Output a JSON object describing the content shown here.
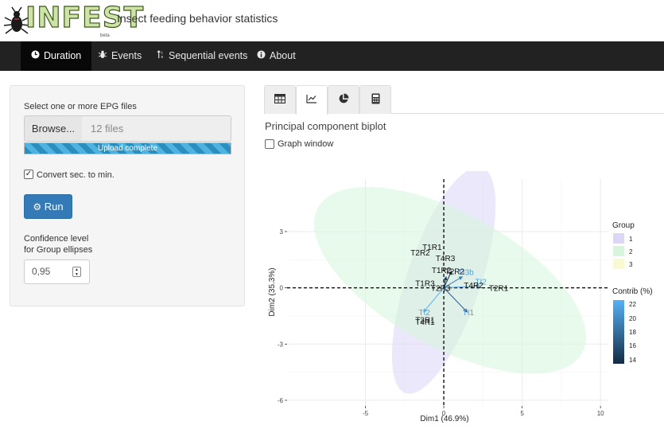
{
  "header": {
    "logo_text": "INFEST",
    "logo_beta": "beta",
    "title": "Insect feeding behavior statistics"
  },
  "navbar": {
    "items": [
      {
        "label": "Duration",
        "icon": "clock-icon",
        "active": true
      },
      {
        "label": "Events",
        "icon": "bug-icon",
        "active": false
      },
      {
        "label": "Sequential events",
        "icon": "sort-icon",
        "active": false
      },
      {
        "label": "About",
        "icon": "info-icon",
        "active": false
      }
    ]
  },
  "sidebar": {
    "file_label": "Select one or more EPG files",
    "browse_label": "Browse...",
    "file_value": "12 files",
    "upload_status": "Upload complete",
    "convert_label": "Convert sec. to min.",
    "convert_checked": true,
    "run_label": "Run",
    "confidence_label_1": "Confidence level",
    "confidence_label_2": "for Group ellipses",
    "confidence_value": "0,95"
  },
  "tabs": [
    {
      "icon": "table-icon",
      "active": false
    },
    {
      "icon": "line-chart-icon",
      "active": true
    },
    {
      "icon": "pie-chart-icon",
      "active": false
    },
    {
      "icon": "calculator-icon",
      "active": false
    }
  ],
  "main": {
    "plot_title": "Principal component biplot",
    "graph_window_label": "Graph window",
    "graph_window_checked": false
  },
  "colors": {
    "group_1": "#dcd6f7",
    "group_2": "#d6f5da",
    "group_3": "#fafad2",
    "contrib_low": "#132b43",
    "contrib_high": "#56b1f7"
  },
  "chart_data": {
    "type": "scatter",
    "title": "",
    "xlabel": "Dim1 (46.9%)",
    "ylabel": "Dim2 (35.3%)",
    "xlim": [
      -10,
      10.5
    ],
    "ylim": [
      -6.3,
      5.8
    ],
    "xticks": [
      -5,
      0,
      5,
      10
    ],
    "yticks": [
      -6,
      -3,
      0,
      3
    ],
    "grid": true,
    "ellipses": [
      {
        "group": "1",
        "cx": 0,
        "cy": 0.4,
        "rx": 6.5,
        "ry": 2.3,
        "angle": 67
      },
      {
        "group": "2",
        "cx": 0.4,
        "cy": 0.4,
        "rx": 9.3,
        "ry": 3.7,
        "angle": -23
      }
    ],
    "points": [
      {
        "label": "T1R1",
        "x": -0.75,
        "y": 2.2
      },
      {
        "label": "T2R2",
        "x": -1.5,
        "y": 1.9
      },
      {
        "label": "T4R3",
        "x": 0.1,
        "y": 1.6
      },
      {
        "label": "T1R2",
        "x": -0.15,
        "y": 0.95
      },
      {
        "label": "T2R2",
        "x": 0.7,
        "y": 0.9
      },
      {
        "label": "T1R3",
        "x": -1.2,
        "y": 0.25
      },
      {
        "label": "T2R3",
        "x": -0.2,
        "y": 0.0
      },
      {
        "label": "T4R2",
        "x": 1.9,
        "y": 0.15
      },
      {
        "label": "T2R1",
        "x": 3.5,
        "y": 0.0
      },
      {
        "label": "T3R1",
        "x": -1.2,
        "y": -1.7
      },
      {
        "label": "T4R1",
        "x": -1.2,
        "y": -1.8
      }
    ],
    "variables": [
      {
        "label": "TI3b",
        "x": 1.2,
        "y": 0.6,
        "contrib": 19
      },
      {
        "label": "TI2",
        "x": 2.3,
        "y": 0.1,
        "contrib": 21
      },
      {
        "label": "TI1",
        "x": 1.5,
        "y": -1.3,
        "contrib": 17
      },
      {
        "label": "TI2",
        "x": -1.3,
        "y": -1.3,
        "contrib": 22
      },
      {
        "label": "",
        "x": 0.5,
        "y": 0.9,
        "contrib": 14
      },
      {
        "label": "",
        "x": 0.15,
        "y": 0.6,
        "contrib": 15
      }
    ],
    "legend": {
      "group_title": "Group",
      "groups": [
        "1",
        "2",
        "3"
      ],
      "contrib_title": "Contrib (%)",
      "contrib_ticks": [
        22,
        20,
        18,
        16,
        14
      ],
      "position": "right"
    }
  }
}
